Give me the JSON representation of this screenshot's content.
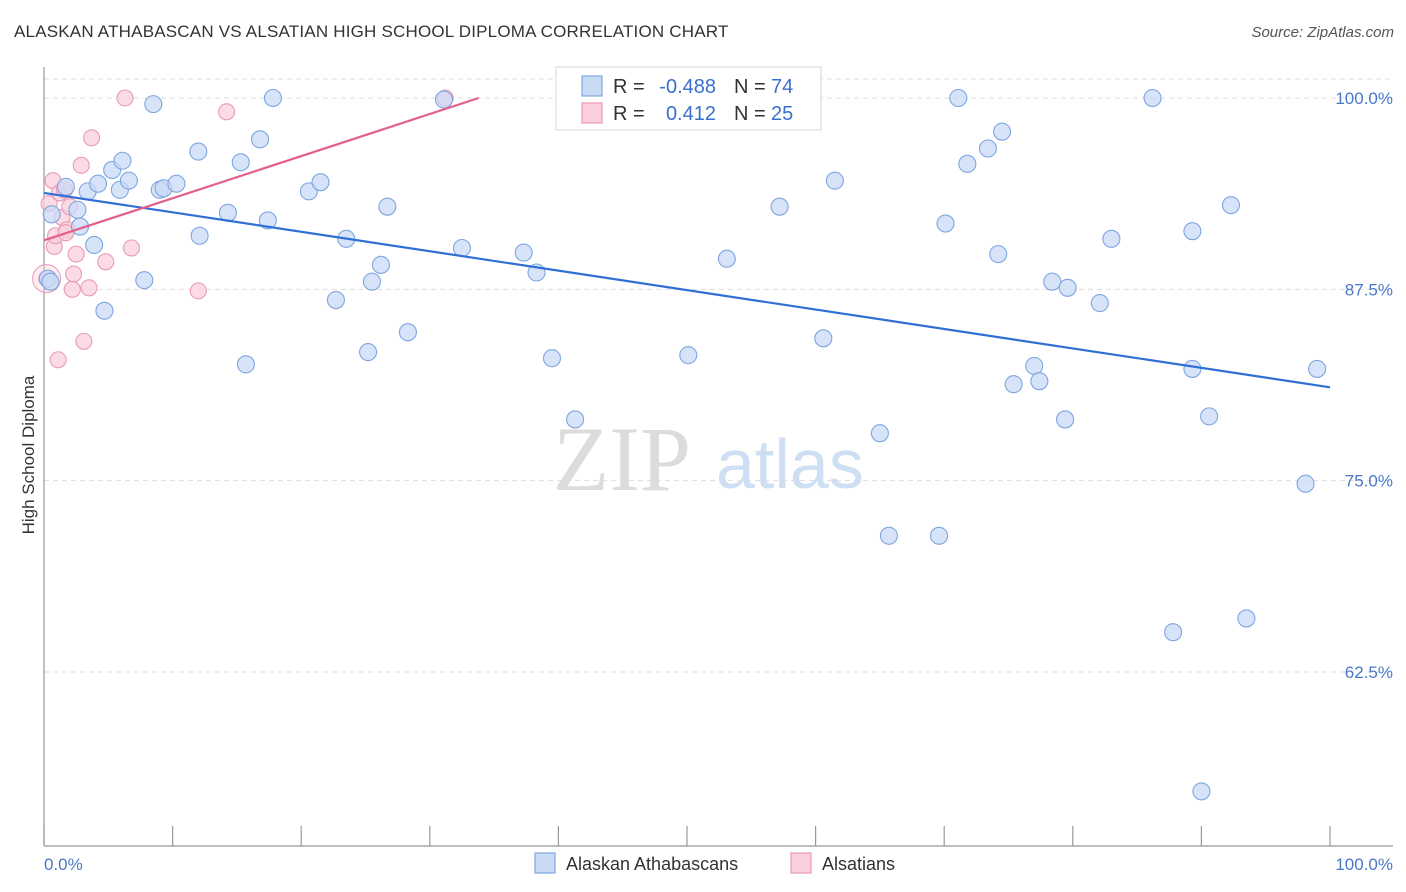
{
  "header": {
    "title": "ALASKAN ATHABASCAN VS ALSATIAN HIGH SCHOOL DIPLOMA CORRELATION CHART",
    "source": "Source: ZipAtlas.com"
  },
  "watermark": {
    "zip": "ZIP",
    "atlas": "atlas"
  },
  "legend": {
    "r_label": "R =",
    "n_label": "N =",
    "rows": [
      {
        "r": "-0.488",
        "n": "74"
      },
      {
        "r": "0.412",
        "n": "25"
      }
    ]
  },
  "colors": {
    "series_a_fill": "#c9daf5",
    "series_a_stroke": "#7ea6e0",
    "series_a_line": "#2f6fd6",
    "series_b_fill": "#f9cfdc",
    "series_b_stroke": "#eb9ab4",
    "series_b_line": "#e2608b",
    "grid": "#dddddd",
    "axis_text": "#4a78c8"
  },
  "chart_data": {
    "type": "scatter",
    "title": "ALASKAN ATHABASCAN VS ALSATIAN HIGH SCHOOL DIPLOMA CORRELATION CHART",
    "xlabel": "",
    "ylabel": "High School Diploma",
    "xlim": [
      0,
      100
    ],
    "ylim": [
      51,
      102.5
    ],
    "x_tick_labels": [
      "0.0%",
      "100.0%"
    ],
    "y_ticks": [
      62.5,
      75.0,
      87.5,
      100.0
    ],
    "y_tick_labels": [
      "62.5%",
      "75.0%",
      "87.5%",
      "100.0%"
    ],
    "grid": "horizontal dashed",
    "legend_position": "top-center",
    "bottom_legend": [
      "Alaskan Athabascans",
      "Alsatians"
    ],
    "series": [
      {
        "name": "Alaskan Athabascans",
        "r": -0.488,
        "n": 74,
        "trend": {
          "x": [
            0,
            100
          ],
          "y": [
            93.8,
            81.1
          ]
        },
        "points": [
          [
            0.3,
            88.2
          ],
          [
            0.6,
            92.4
          ],
          [
            1.7,
            94.2
          ],
          [
            2.6,
            92.7
          ],
          [
            2.8,
            91.6
          ],
          [
            3.4,
            93.9
          ],
          [
            3.9,
            90.4
          ],
          [
            4.2,
            94.4
          ],
          [
            5.3,
            95.3
          ],
          [
            5.9,
            94.0
          ],
          [
            6.1,
            95.9
          ],
          [
            6.6,
            94.6
          ],
          [
            7.8,
            88.1
          ],
          [
            8.5,
            99.6
          ],
          [
            9.0,
            94.0
          ],
          [
            9.3,
            94.1
          ],
          [
            10.3,
            94.4
          ],
          [
            12.0,
            96.5
          ],
          [
            12.1,
            91.0
          ],
          [
            14.3,
            92.5
          ],
          [
            15.3,
            95.8
          ],
          [
            16.8,
            97.3
          ],
          [
            17.4,
            92.0
          ],
          [
            17.8,
            100.0
          ],
          [
            20.6,
            93.9
          ],
          [
            21.5,
            94.5
          ],
          [
            22.7,
            86.8
          ],
          [
            23.5,
            90.8
          ],
          [
            25.2,
            83.4
          ],
          [
            25.5,
            88.0
          ],
          [
            26.2,
            89.1
          ],
          [
            26.7,
            92.9
          ],
          [
            28.3,
            84.7
          ],
          [
            31.1,
            99.9
          ],
          [
            32.5,
            90.2
          ],
          [
            37.3,
            89.9
          ],
          [
            38.3,
            88.6
          ],
          [
            39.5,
            83.0
          ],
          [
            41.3,
            79.0
          ],
          [
            4.7,
            86.1
          ],
          [
            15.7,
            82.6
          ],
          [
            50.1,
            83.2
          ],
          [
            53.1,
            89.5
          ],
          [
            57.2,
            92.9
          ],
          [
            60.6,
            84.3
          ],
          [
            61.5,
            94.6
          ],
          [
            65.0,
            78.1
          ],
          [
            65.7,
            71.4
          ],
          [
            69.6,
            71.4
          ],
          [
            70.1,
            91.8
          ],
          [
            71.1,
            100.0
          ],
          [
            71.8,
            95.7
          ],
          [
            73.4,
            96.7
          ],
          [
            74.2,
            89.8
          ],
          [
            74.5,
            97.8
          ],
          [
            75.4,
            81.3
          ],
          [
            77.0,
            82.5
          ],
          [
            77.4,
            81.5
          ],
          [
            78.4,
            88.0
          ],
          [
            79.6,
            87.6
          ],
          [
            79.4,
            79.0
          ],
          [
            82.1,
            86.6
          ],
          [
            83.0,
            90.8
          ],
          [
            86.2,
            100.0
          ],
          [
            89.3,
            91.3
          ],
          [
            89.3,
            82.3
          ],
          [
            90.6,
            79.2
          ],
          [
            92.3,
            93.0
          ],
          [
            93.5,
            66.0
          ],
          [
            87.8,
            65.1
          ],
          [
            98.1,
            74.8
          ],
          [
            99.0,
            82.3
          ],
          [
            90.0,
            54.7
          ],
          [
            0.5,
            88.0
          ]
        ]
      },
      {
        "name": "Alsatians",
        "r": 0.412,
        "n": 25,
        "trend": {
          "x": [
            0,
            33.8
          ],
          "y": [
            90.7,
            100.0
          ]
        },
        "points": [
          [
            0.2,
            88.2
          ],
          [
            0.4,
            93.1
          ],
          [
            0.7,
            94.6
          ],
          [
            0.8,
            90.3
          ],
          [
            0.9,
            91.0
          ],
          [
            1.2,
            93.8
          ],
          [
            1.4,
            92.2
          ],
          [
            1.6,
            94.0
          ],
          [
            1.8,
            91.4
          ],
          [
            2.0,
            92.9
          ],
          [
            2.3,
            88.5
          ],
          [
            2.5,
            89.8
          ],
          [
            2.9,
            95.6
          ],
          [
            3.1,
            84.1
          ],
          [
            3.5,
            87.6
          ],
          [
            3.7,
            97.4
          ],
          [
            4.8,
            89.3
          ],
          [
            6.3,
            100.0
          ],
          [
            6.8,
            90.2
          ],
          [
            12.0,
            87.4
          ],
          [
            14.2,
            99.1
          ],
          [
            31.2,
            100.0
          ],
          [
            1.1,
            82.9
          ],
          [
            2.2,
            87.5
          ],
          [
            1.7,
            91.2
          ]
        ]
      }
    ]
  }
}
